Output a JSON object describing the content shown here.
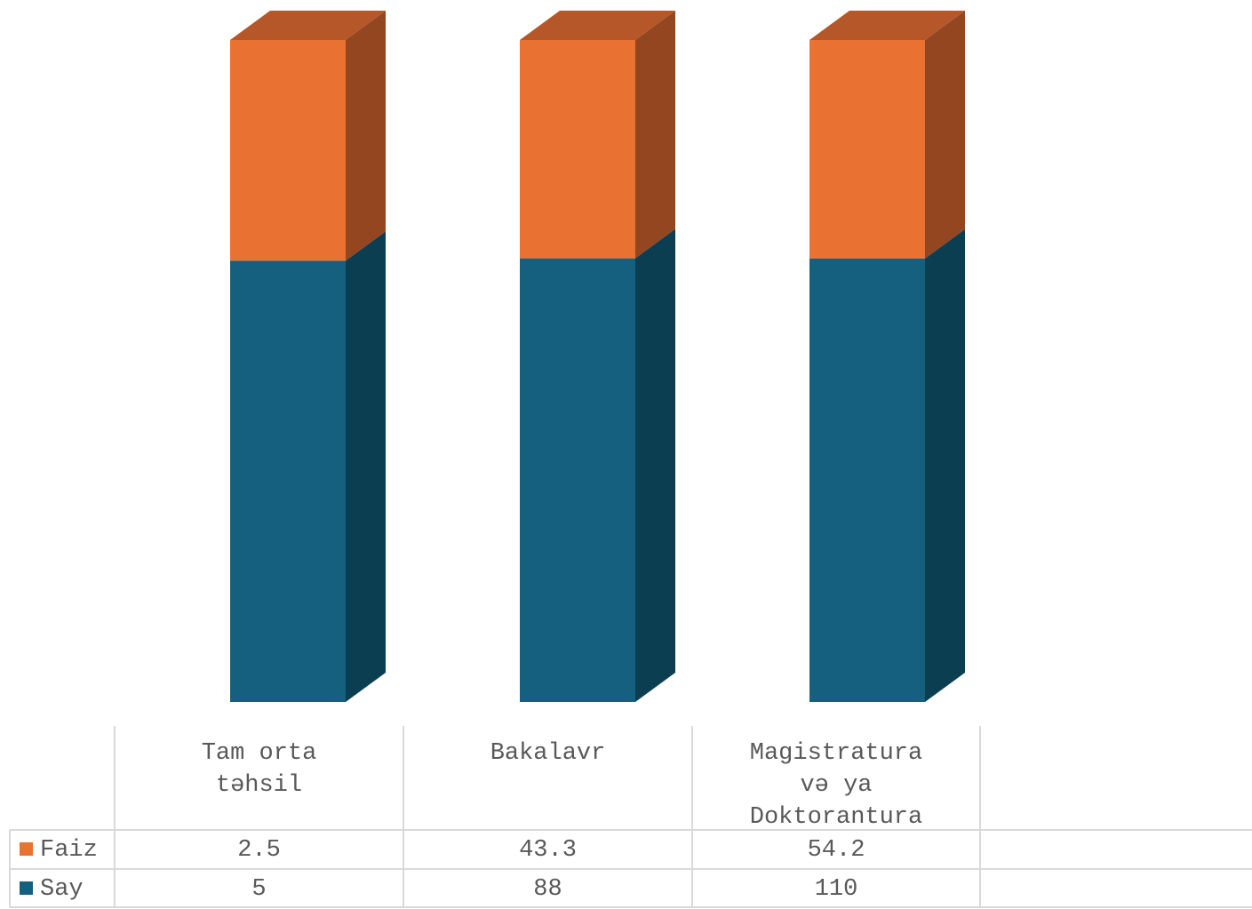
{
  "chart_data": {
    "type": "bar",
    "stacked": true,
    "three_d": true,
    "categories": [
      "Tam orta\ntəhsil",
      "Bakalavr",
      "Magistratura\nvə ya\nDoktorantura"
    ],
    "series": [
      {
        "name": "Say",
        "values": [
          5,
          88,
          110
        ],
        "color": "#16607f",
        "side_color": "#0c3e52"
      },
      {
        "name": "Faiz",
        "values": [
          2.5,
          43.3,
          54.2
        ],
        "color": "#e97132",
        "side_color": "#93461f",
        "top_color": "#b55728"
      }
    ],
    "data_table": {
      "rows": [
        {
          "series": "Faiz",
          "values": [
            "2.5",
            "43.3",
            "54.2"
          ]
        },
        {
          "series": "Say",
          "values": [
            "5",
            "88",
            "110"
          ]
        }
      ],
      "legend_keys": true
    },
    "grid": false,
    "legend": "data-table"
  }
}
